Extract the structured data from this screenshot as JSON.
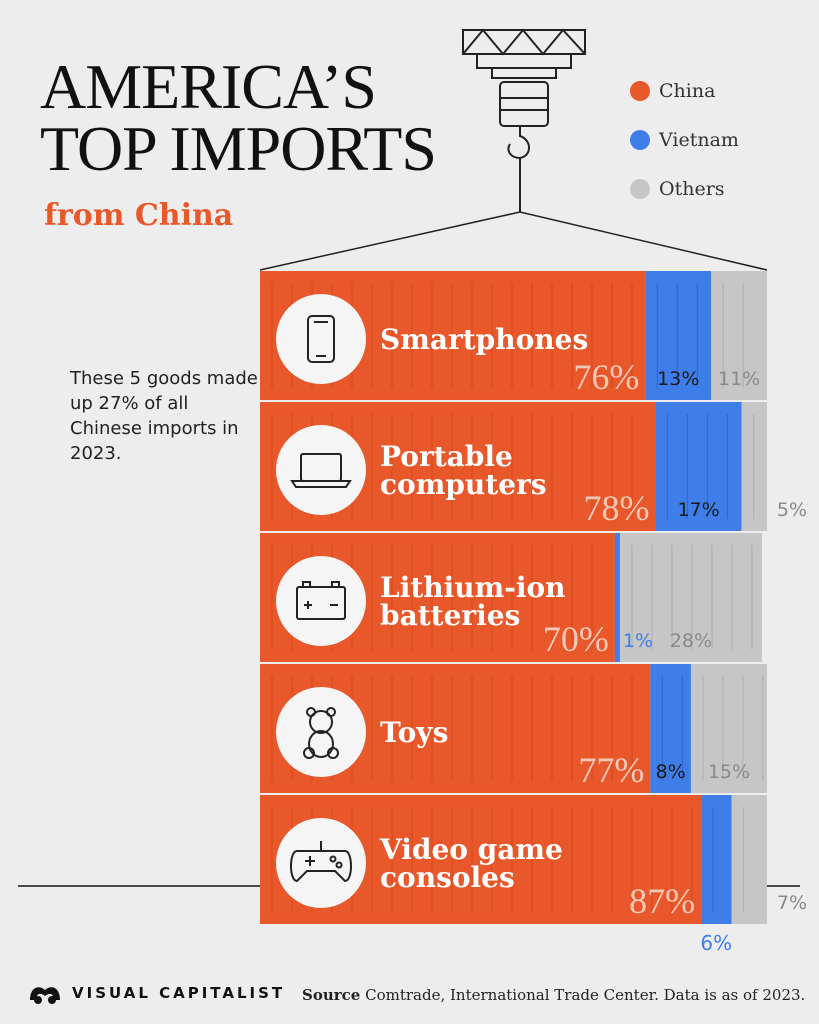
{
  "title_lines": [
    "AMERICA’S",
    "TOP IMPORTS"
  ],
  "subtitle": "from China",
  "legend": [
    {
      "label": "China",
      "color": "#e8582a"
    },
    {
      "label": "Vietnam",
      "color": "#3f7ee8"
    },
    {
      "label": "Others",
      "color": "#c6c6c6"
    }
  ],
  "note": "These 5 goods made up 27% of all Chinese imports in 2023.",
  "chart_data": {
    "type": "bar",
    "orientation": "horizontal",
    "stacked": true,
    "unit": "%",
    "categories": [
      {
        "label_lines": [
          "Smartphones"
        ],
        "icon": "smartphone-icon"
      },
      {
        "label_lines": [
          "Portable",
          "computers"
        ],
        "icon": "laptop-icon"
      },
      {
        "label_lines": [
          "Lithium-ion",
          "batteries"
        ],
        "icon": "battery-icon"
      },
      {
        "label_lines": [
          "Toys"
        ],
        "icon": "teddy-bear-icon"
      },
      {
        "label_lines": [
          "Video game",
          "consoles"
        ],
        "icon": "gamepad-icon"
      }
    ],
    "series": [
      {
        "name": "China",
        "color": "#e8582a",
        "values": [
          76,
          78,
          70,
          77,
          87
        ]
      },
      {
        "name": "Vietnam",
        "color": "#3f7ee8",
        "values": [
          13,
          17,
          1,
          8,
          6
        ]
      },
      {
        "name": "Others",
        "color": "#c6c6c6",
        "values": [
          11,
          5,
          28,
          15,
          7
        ]
      }
    ]
  },
  "footer": {
    "brand": "VISUAL CAPITALIST",
    "source_label": "Source",
    "source_text": "Comtrade, International Trade Center. Data is as of 2023."
  }
}
